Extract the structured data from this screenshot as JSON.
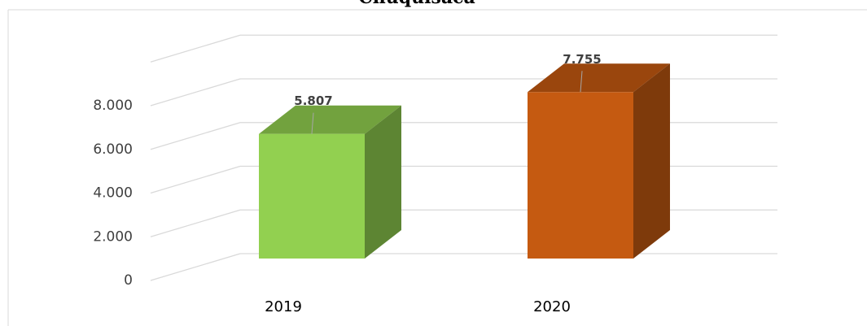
{
  "chart_data": {
    "type": "bar3d",
    "title": "Chuquisaca",
    "categories": [
      "2019",
      "2020"
    ],
    "values": [
      5807,
      7755
    ],
    "value_labels": [
      "5.807",
      "7.755"
    ],
    "colors": [
      "#92d050",
      "#c55a11"
    ],
    "ylim": [
      0,
      10000
    ],
    "yticks": [
      0,
      {
        "value": 2000,
        "label": "2.000"
      },
      {
        "value": 4000,
        "label": "4.000"
      },
      {
        "value": 6000,
        "label": "6.000"
      },
      {
        "value": 8000,
        "label": "8.000"
      }
    ],
    "grid": true
  }
}
